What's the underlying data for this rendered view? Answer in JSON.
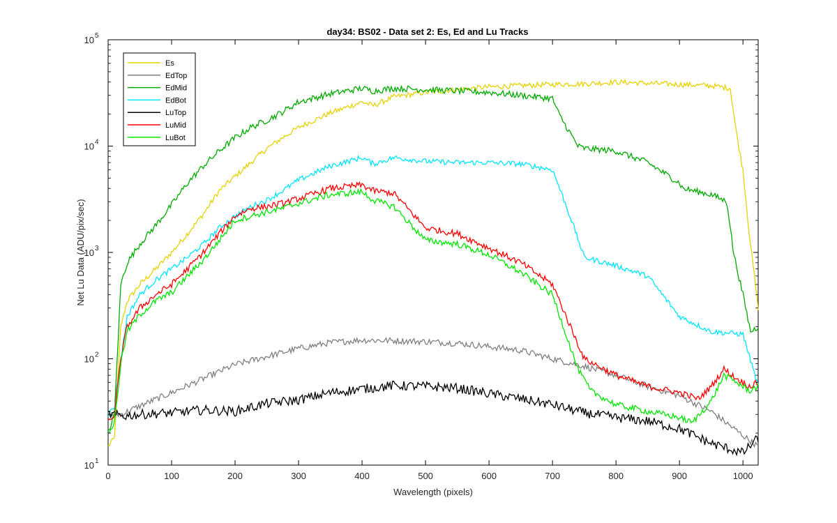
{
  "chart_data": {
    "type": "line",
    "title": "day34: BS02 - Data set 2: Es, Ed and Lu Tracks",
    "xlabel": "Wavelength (pixels)",
    "ylabel": "Net Lu Data (ADU/pix/sec)",
    "xlim": [
      0,
      1024
    ],
    "ylim": [
      10,
      100000
    ],
    "yscale": "log",
    "x_ticks": [
      "0",
      "100",
      "200",
      "300",
      "400",
      "500",
      "600",
      "700",
      "800",
      "900",
      "1000"
    ],
    "y_ticks": [
      {
        "value": 10,
        "base": "10",
        "exp": "1"
      },
      {
        "value": 100,
        "base": "10",
        "exp": "2"
      },
      {
        "value": 1000,
        "base": "10",
        "exp": "3"
      },
      {
        "value": 10000,
        "base": "10",
        "exp": "4"
      },
      {
        "value": 100000,
        "base": "10",
        "exp": "5"
      }
    ],
    "grid": false,
    "legend_position": "top-left",
    "series": [
      {
        "name": "Es",
        "color": "#e6d200",
        "x": [
          0,
          10,
          20,
          30,
          50,
          75,
          100,
          125,
          150,
          175,
          200,
          225,
          250,
          275,
          300,
          350,
          400,
          418,
          450,
          500,
          550,
          600,
          650,
          700,
          750,
          800,
          850,
          900,
          950,
          980,
          990,
          1000,
          1010,
          1024
        ],
        "y": [
          15,
          18,
          200,
          350,
          500,
          700,
          1000,
          1500,
          2300,
          3800,
          5200,
          7000,
          9500,
          12000,
          15000,
          20500,
          26000,
          24000,
          29000,
          32000,
          34000,
          36000,
          37000,
          38000,
          38500,
          40000,
          39000,
          38000,
          37000,
          35000,
          13000,
          6000,
          1500,
          300
        ]
      },
      {
        "name": "EdTop",
        "color": "#808080",
        "x": [
          0,
          20,
          50,
          100,
          150,
          200,
          250,
          300,
          350,
          400,
          450,
          500,
          550,
          600,
          650,
          700,
          750,
          800,
          850,
          900,
          950,
          1000,
          1024
        ],
        "y": [
          30,
          30,
          36,
          48,
          65,
          88,
          105,
          125,
          142,
          150,
          148,
          145,
          140,
          130,
          120,
          100,
          85,
          70,
          55,
          45,
          32,
          19,
          15
        ]
      },
      {
        "name": "EdMid",
        "color": "#00aa00",
        "x": [
          0,
          10,
          20,
          30,
          50,
          75,
          100,
          125,
          150,
          175,
          200,
          225,
          250,
          275,
          300,
          350,
          400,
          418,
          450,
          500,
          550,
          600,
          650,
          700,
          710,
          740,
          750,
          800,
          850,
          900,
          905,
          950,
          975,
          985,
          1000,
          1012,
          1024
        ],
        "y": [
          20,
          30,
          500,
          800,
          1200,
          1800,
          2800,
          4500,
          6500,
          9000,
          12000,
          15000,
          17500,
          21000,
          26000,
          31000,
          35000,
          33000,
          35000,
          34000,
          33000,
          32000,
          30000,
          28000,
          20000,
          10000,
          9500,
          9000,
          7000,
          4500,
          4000,
          3500,
          3000,
          1000,
          400,
          180,
          200
        ]
      },
      {
        "name": "EdBot",
        "color": "#00e5ff",
        "x": [
          0,
          10,
          20,
          30,
          50,
          75,
          100,
          125,
          150,
          175,
          200,
          225,
          250,
          275,
          300,
          350,
          400,
          418,
          450,
          500,
          550,
          600,
          650,
          700,
          710,
          730,
          750,
          800,
          850,
          900,
          950,
          1000,
          1024
        ],
        "y": [
          30,
          35,
          100,
          250,
          400,
          550,
          700,
          900,
          1200,
          1700,
          2200,
          2700,
          3100,
          3800,
          4800,
          6500,
          7800,
          6800,
          7800,
          7200,
          7000,
          7000,
          6800,
          6000,
          4200,
          2000,
          900,
          750,
          600,
          250,
          180,
          170,
          55
        ]
      },
      {
        "name": "LuTop",
        "color": "#000000",
        "x": [
          0,
          25,
          50,
          100,
          150,
          200,
          250,
          300,
          350,
          400,
          450,
          500,
          550,
          600,
          650,
          700,
          750,
          800,
          850,
          900,
          950,
          1000,
          1024
        ],
        "y": [
          30,
          29,
          30,
          31,
          33,
          32,
          38,
          41,
          48,
          52,
          56,
          55,
          53,
          47,
          42,
          37,
          31,
          28,
          26,
          22,
          16,
          13,
          18
        ]
      },
      {
        "name": "LuMid",
        "color": "#ff0000",
        "x": [
          0,
          10,
          20,
          30,
          50,
          75,
          100,
          125,
          150,
          175,
          200,
          225,
          250,
          275,
          300,
          350,
          400,
          418,
          450,
          500,
          550,
          600,
          650,
          700,
          750,
          800,
          850,
          900,
          930,
          950,
          970,
          990,
          1010,
          1024
        ],
        "y": [
          25,
          30,
          100,
          200,
          300,
          400,
          500,
          700,
          1000,
          1500,
          2200,
          2600,
          2700,
          2900,
          3200,
          4000,
          4300,
          3800,
          3600,
          1700,
          1500,
          1100,
          800,
          500,
          100,
          70,
          55,
          48,
          42,
          55,
          80,
          65,
          55,
          60
        ]
      },
      {
        "name": "LuBot",
        "color": "#00e600",
        "x": [
          0,
          10,
          20,
          30,
          50,
          75,
          100,
          125,
          150,
          175,
          200,
          225,
          250,
          275,
          300,
          350,
          400,
          418,
          450,
          500,
          550,
          600,
          650,
          700,
          740,
          760,
          800,
          850,
          900,
          920,
          950,
          970,
          990,
          1010,
          1024
        ],
        "y": [
          20,
          25,
          90,
          180,
          260,
          350,
          420,
          600,
          850,
          1300,
          2000,
          2200,
          2400,
          2600,
          2900,
          3500,
          3700,
          3100,
          2700,
          1300,
          1200,
          950,
          650,
          400,
          80,
          50,
          37,
          32,
          28,
          25,
          40,
          70,
          60,
          50,
          55
        ]
      }
    ]
  }
}
